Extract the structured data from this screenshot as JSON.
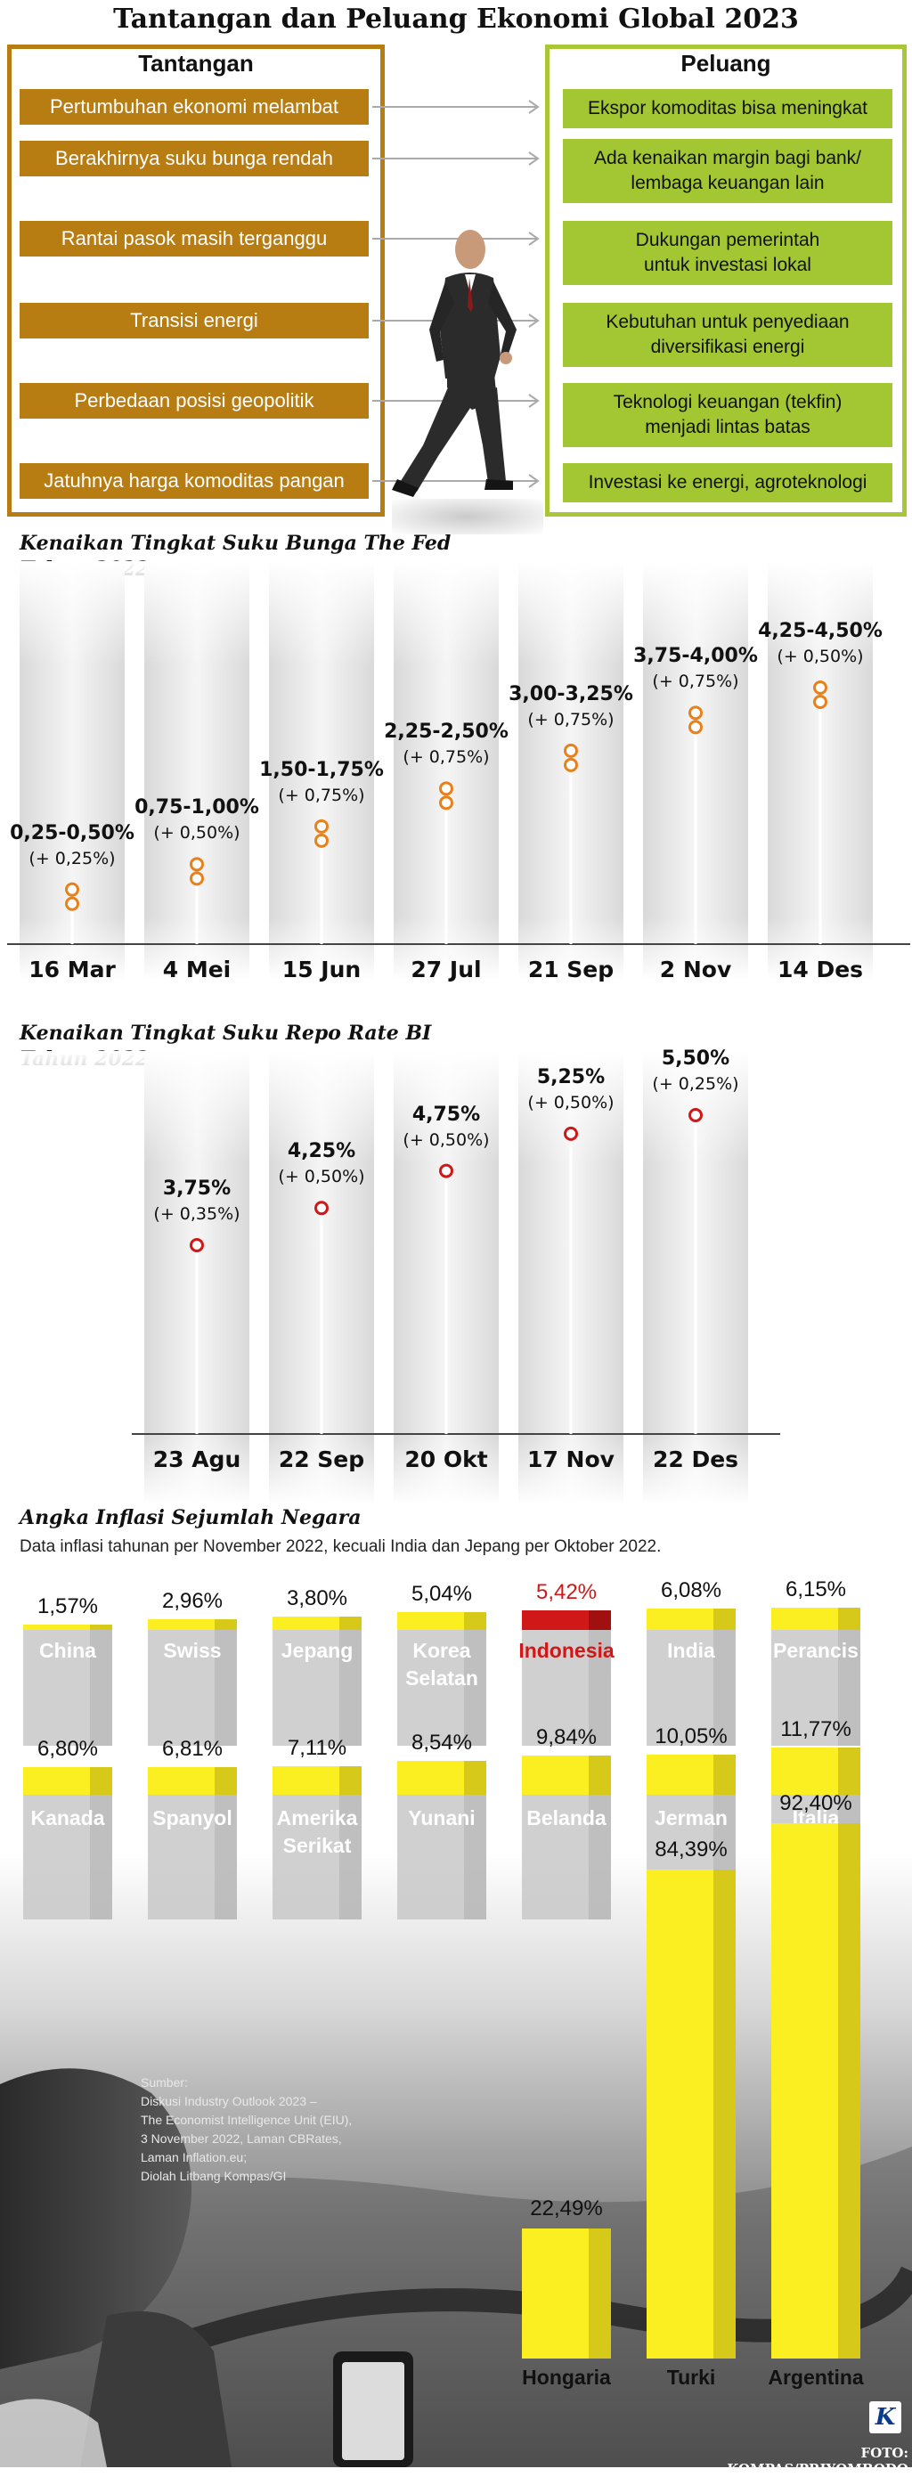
{
  "title": "Tantangan dan Peluang Ekonomi Global 2023",
  "tantangan": {
    "heading": "Tantangan",
    "items": [
      "Pertumbuhan ekonomi melambat",
      "Berakhirnya suku bunga rendah",
      "Rantai pasok masih terganggu",
      "Transisi energi",
      "Perbedaan posisi geopolitik",
      "Jatuhnya harga komoditas pangan"
    ]
  },
  "peluang": {
    "heading": "Peluang",
    "items": [
      [
        "Ekspor komoditas bisa meningkat"
      ],
      [
        "Ada kenaikan margin bagi bank/",
        "lembaga keuangan lain"
      ],
      [
        "Dukungan pemerintah",
        "untuk investasi lokal"
      ],
      [
        "Kebutuhan untuk penyediaan",
        "diversifikasi energi"
      ],
      [
        "Teknologi keuangan (tekfin)",
        "menjadi lintas batas"
      ],
      [
        "Investasi ke energi, agroteknologi"
      ]
    ]
  },
  "chart_data": [
    {
      "type": "line",
      "title": "Kenaikan Tingkat Suku Bunga The Fed",
      "subtitle": "Tahun 2022",
      "categories": [
        "16 Mar",
        "4 Mei",
        "15 Jun",
        "27 Jul",
        "21 Sep",
        "2 Nov",
        "14 Des"
      ],
      "labels": [
        "0,25-0,50%",
        "0,75-1,00%",
        "1,50-1,75%",
        "2,25-2,50%",
        "3,00-3,25%",
        "3,75-4,00%",
        "4,25-4,50%"
      ],
      "deltas": [
        "(+ 0,25%)",
        "(+ 0,50%)",
        "(+ 0,75%)",
        "(+ 0,75%)",
        "(+ 0,75%)",
        "(+ 0,75%)",
        "(+ 0,50%)"
      ],
      "values": [
        0.5,
        1.0,
        1.75,
        2.5,
        3.25,
        4.0,
        4.5
      ],
      "ylim": [
        0,
        4.5
      ]
    },
    {
      "type": "line",
      "title": "Kenaikan Tingkat Suku Repo Rate BI",
      "subtitle": "Tahun 2022",
      "categories": [
        "23 Agu",
        "22 Sep",
        "20 Okt",
        "17 Nov",
        "22 Des"
      ],
      "labels": [
        "3,75%",
        "4,25%",
        "4,75%",
        "5,25%",
        "5,50%"
      ],
      "deltas": [
        "(+ 0,35%)",
        "(+ 0,50%)",
        "(+ 0,50%)",
        "(+ 0,50%)",
        "(+ 0,25%)"
      ],
      "values": [
        3.75,
        4.25,
        4.75,
        5.25,
        5.5
      ],
      "ylim": [
        2.0,
        5.5
      ]
    },
    {
      "type": "bar",
      "title": "Angka Inflasi Sejumlah Negara",
      "subtitle": "Data inflasi tahunan per November 2022, kecuali India dan Jepang per Oktober 2022.",
      "rows": [
        {
          "categories": [
            "China",
            "Swiss",
            "Jepang",
            "Korea Selatan",
            "Indonesia",
            "India",
            "Perancis"
          ],
          "labels": [
            "1,57%",
            "2,96%",
            "3,80%",
            "5,04%",
            "5,42%",
            "6,08%",
            "6,15%"
          ],
          "values": [
            1.57,
            2.96,
            3.8,
            5.04,
            5.42,
            6.08,
            6.15
          ]
        },
        {
          "categories": [
            "Kanada",
            "Spanyol",
            "Amerika Serikat",
            "Yunani",
            "Belanda",
            "Jerman",
            "Italia"
          ],
          "labels": [
            "6,80%",
            "6,81%",
            "7,11%",
            "8,54%",
            "9,84%",
            "10,05%",
            "11,77%"
          ],
          "values": [
            6.8,
            6.81,
            7.11,
            8.54,
            9.84,
            10.05,
            11.77
          ]
        },
        {
          "categories": [
            "Hongaria",
            "Turki",
            "Argentina"
          ],
          "labels": [
            "22,49%",
            "84,39%",
            "92,40%"
          ],
          "values": [
            22.49,
            84.39,
            92.4
          ]
        }
      ],
      "highlight": "Indonesia"
    }
  ],
  "source": {
    "lines": [
      "Sumber:",
      "Diskusi Industry Outlook 2023 –",
      "The Economist Intelligence Unit (EIU),",
      "3 November 2022, Laman CBRates,",
      "Laman Inflation.eu;",
      "Diolah Litbang Kompas/GI"
    ]
  },
  "credit": "FOTO: KOMPAS/PRIYOMBODO",
  "logo": "K",
  "colors": {
    "gold": "#b87d12",
    "green": "#a3c633",
    "orange": "#e8811a",
    "red": "#d01818",
    "yellow": "#fbef22"
  }
}
